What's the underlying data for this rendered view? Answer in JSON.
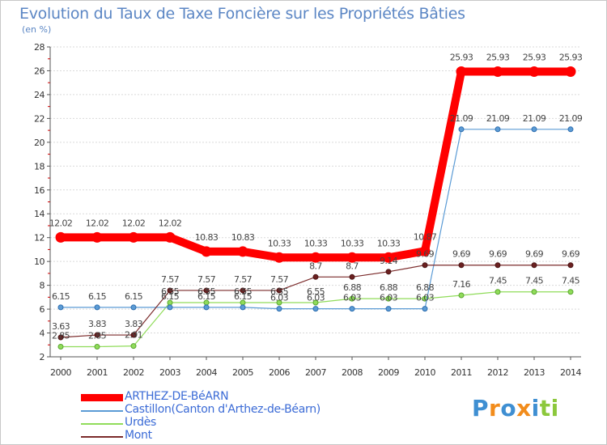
{
  "chart_data": {
    "type": "line",
    "title": "Evolution du Taux de Taxe Foncière sur les Propriétés Bâties",
    "ylabel": "(en %)",
    "xlabel": "",
    "ylim": [
      2,
      28
    ],
    "yticks": [
      2,
      4,
      6,
      8,
      10,
      12,
      14,
      16,
      18,
      20,
      22,
      24,
      26,
      28
    ],
    "categories": [
      "2000",
      "2001",
      "2002",
      "2003",
      "2004",
      "2005",
      "2006",
      "2007",
      "2008",
      "2009",
      "2010",
      "2011",
      "2012",
      "2013",
      "2014"
    ],
    "series": [
      {
        "name": "ARTHEZ-DE-BéARN",
        "color": "#ff0000",
        "values": [
          12.02,
          12.02,
          12.02,
          12.02,
          10.83,
          10.83,
          10.33,
          10.33,
          10.33,
          10.33,
          10.87,
          25.93,
          25.93,
          25.93,
          25.93
        ],
        "labels": [
          "12.02",
          "12.02",
          "12.02",
          "12.02",
          "10.83",
          "10.83",
          "10.33",
          "10.33",
          "10.33",
          "10.33",
          "10.87",
          "25.93",
          "25.93",
          "25.93",
          "25.93"
        ]
      },
      {
        "name": "Castillon(Canton d'Arthez-de-Béarn)",
        "color": "#5b9bd5",
        "values": [
          6.15,
          6.15,
          6.15,
          6.15,
          6.15,
          6.15,
          6.03,
          6.03,
          6.03,
          6.03,
          6.03,
          21.09,
          21.09,
          21.09,
          21.09
        ],
        "labels": [
          "6.15",
          "6.15",
          "6.15",
          "6.15",
          "6.15",
          "6.15",
          "6.03",
          "6.03",
          "6.03",
          "6.03",
          "6.03",
          "21.09",
          "21.09",
          "21.09",
          "21.09"
        ]
      },
      {
        "name": "Urdès",
        "color": "#90dc5a",
        "values": [
          2.85,
          2.85,
          2.91,
          6.55,
          6.55,
          6.55,
          6.55,
          6.55,
          6.88,
          6.88,
          6.88,
          7.16,
          7.45,
          7.45,
          7.45
        ],
        "labels": [
          "2.85",
          "2.85",
          "2.91",
          "6.55",
          "6.55",
          "6.55",
          "6.55",
          "6.55",
          "6.88",
          "6.88",
          "6.88",
          "7.16",
          "7.45",
          "7.45",
          "7.45"
        ]
      },
      {
        "name": "Mont",
        "color": "#7b2b2b",
        "values": [
          3.63,
          3.83,
          3.83,
          7.57,
          7.57,
          7.57,
          7.57,
          8.7,
          8.7,
          9.14,
          9.69,
          9.69,
          9.69,
          9.69,
          9.69
        ],
        "labels": [
          "3.63",
          "3.83",
          "3.83",
          "7.57",
          "7.57",
          "7.57",
          "7.57",
          "8.7",
          "8.7",
          "9.14",
          "9.69",
          "9.69",
          "9.69",
          "9.69",
          "9.69"
        ]
      }
    ],
    "legend_position": "bottom-left"
  },
  "logo": {
    "letters": [
      "P",
      "r",
      "o",
      "x",
      "i",
      "t",
      "i"
    ],
    "colors": [
      "#3f8fd2",
      "#f28c1b",
      "#3f8fd2",
      "#f28c1b",
      "#3f8fd2",
      "#8cc83c",
      "#8cc83c"
    ]
  }
}
